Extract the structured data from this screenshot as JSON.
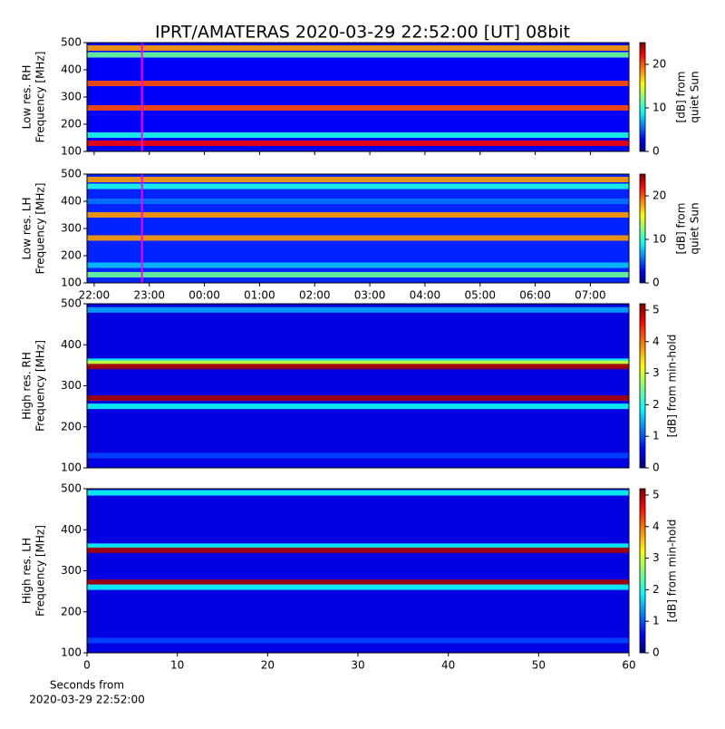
{
  "title": "IPRT/AMATERAS 2020-03-29 22:52:00 [UT]   08bit",
  "chart_data": [
    {
      "type": "spectrogram",
      "ylabel": [
        "Low res. RH",
        "Frequency [MHz]"
      ],
      "ylim": [
        100,
        500
      ],
      "yticks": [
        100,
        200,
        300,
        400,
        500
      ],
      "xlim": [
        21.87,
        31.7
      ],
      "marker_x": 22.867,
      "marker_color": "#ff00ff",
      "clabel": [
        "[dB] from",
        "quiet Sun"
      ],
      "clim": [
        0,
        25
      ],
      "cticks": [
        0,
        10,
        20
      ],
      "background": 3,
      "bands": [
        {
          "freq": 480,
          "level": 18
        },
        {
          "freq": 455,
          "level": 12
        },
        {
          "freq": 350,
          "level": 20
        },
        {
          "freq": 260,
          "level": 20
        },
        {
          "freq": 160,
          "level": 10
        },
        {
          "freq": 130,
          "level": 22
        }
      ]
    },
    {
      "type": "spectrogram",
      "ylabel": [
        "Low res. LH",
        "Frequency [MHz]"
      ],
      "ylim": [
        100,
        500
      ],
      "yticks": [
        100,
        200,
        300,
        400,
        500
      ],
      "xlim": [
        21.87,
        31.7
      ],
      "xticks": [
        {
          "value": 22,
          "label": "22:00"
        },
        {
          "value": 23,
          "label": "23:00"
        },
        {
          "value": 24,
          "label": "00:00"
        },
        {
          "value": 25,
          "label": "01:00"
        },
        {
          "value": 26,
          "label": "02:00"
        },
        {
          "value": 27,
          "label": "03:00"
        },
        {
          "value": 28,
          "label": "04:00"
        },
        {
          "value": 29,
          "label": "05:00"
        },
        {
          "value": 30,
          "label": "06:00"
        },
        {
          "value": 31,
          "label": "07:00"
        }
      ],
      "marker_x": 22.867,
      "marker_color": "#ff00ff",
      "clabel": [
        "[dB] from",
        "quiet Sun"
      ],
      "clim": [
        0,
        25
      ],
      "cticks": [
        0,
        10,
        20
      ],
      "background": 4,
      "bands": [
        {
          "freq": 480,
          "level": 18
        },
        {
          "freq": 455,
          "level": 10
        },
        {
          "freq": 400,
          "level": 6
        },
        {
          "freq": 350,
          "level": 18
        },
        {
          "freq": 265,
          "level": 18
        },
        {
          "freq": 165,
          "level": 8
        },
        {
          "freq": 130,
          "level": 12
        }
      ]
    },
    {
      "type": "spectrogram",
      "ylabel": [
        "High res. RH",
        "Frequency [MHz]"
      ],
      "ylim": [
        100,
        500
      ],
      "yticks": [
        100,
        200,
        300,
        400,
        500
      ],
      "xlim": [
        0,
        60
      ],
      "clabel": [
        "[dB] from min-hold"
      ],
      "clim": [
        0,
        5.2
      ],
      "cticks": [
        0,
        1,
        2,
        3,
        4,
        5
      ],
      "background": 0.5,
      "bands": [
        {
          "freq": 485,
          "level": 1.5
        },
        {
          "freq": 360,
          "level": 2
        },
        {
          "freq": 355,
          "level": 3
        },
        {
          "freq": 347,
          "level": 5
        },
        {
          "freq": 270,
          "level": 5
        },
        {
          "freq": 250,
          "level": 2
        },
        {
          "freq": 130,
          "level": 1
        }
      ]
    },
    {
      "type": "spectrogram",
      "ylabel": [
        "High res. LH",
        "Frequency [MHz]"
      ],
      "ylim": [
        100,
        500
      ],
      "yticks": [
        100,
        200,
        300,
        400,
        500
      ],
      "xlim": [
        0,
        60
      ],
      "xticks": [
        0,
        10,
        20,
        30,
        40,
        50,
        60
      ],
      "xlabel": [
        "Seconds from",
        "2020-03-29 22:52:00"
      ],
      "clabel": [
        "[dB] from min-hold"
      ],
      "clim": [
        0,
        5.2
      ],
      "cticks": [
        0,
        1,
        2,
        3,
        4,
        5
      ],
      "background": 0.5,
      "bands": [
        {
          "freq": 490,
          "level": 2
        },
        {
          "freq": 360,
          "level": 2
        },
        {
          "freq": 350,
          "level": 5
        },
        {
          "freq": 272,
          "level": 5
        },
        {
          "freq": 260,
          "level": 2
        },
        {
          "freq": 130,
          "level": 1
        }
      ]
    }
  ]
}
